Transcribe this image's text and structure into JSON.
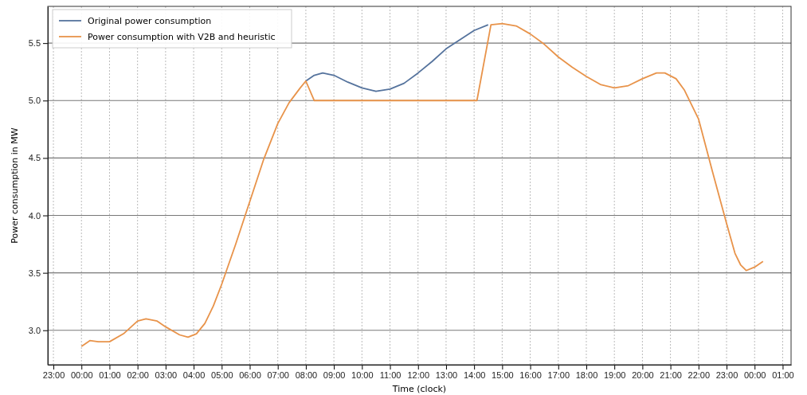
{
  "chart_data": {
    "type": "line",
    "xlabel": "Time (clock)",
    "ylabel": "Power consumption in MW",
    "xlim": [
      "2000-01-01T22:48",
      "2000-01-03T01:18"
    ],
    "ylim": [
      2.7,
      5.82
    ],
    "xticks": [
      {
        "value": "2000-01-01T23:00",
        "label": "23:00"
      },
      {
        "value": "2000-01-02T00:00",
        "label": "00:00"
      },
      {
        "value": "2000-01-02T01:00",
        "label": "01:00"
      },
      {
        "value": "2000-01-02T02:00",
        "label": "02:00"
      },
      {
        "value": "2000-01-02T03:00",
        "label": "03:00"
      },
      {
        "value": "2000-01-02T04:00",
        "label": "04:00"
      },
      {
        "value": "2000-01-02T05:00",
        "label": "05:00"
      },
      {
        "value": "2000-01-02T06:00",
        "label": "06:00"
      },
      {
        "value": "2000-01-02T07:00",
        "label": "07:00"
      },
      {
        "value": "2000-01-02T08:00",
        "label": "08:00"
      },
      {
        "value": "2000-01-02T09:00",
        "label": "09:00"
      },
      {
        "value": "2000-01-02T10:00",
        "label": "10:00"
      },
      {
        "value": "2000-01-02T11:00",
        "label": "11:00"
      },
      {
        "value": "2000-01-02T12:00",
        "label": "12:00"
      },
      {
        "value": "2000-01-02T13:00",
        "label": "13:00"
      },
      {
        "value": "2000-01-02T14:00",
        "label": "14:00"
      },
      {
        "value": "2000-01-02T15:00",
        "label": "15:00"
      },
      {
        "value": "2000-01-02T16:00",
        "label": "16:00"
      },
      {
        "value": "2000-01-02T17:00",
        "label": "17:00"
      },
      {
        "value": "2000-01-02T18:00",
        "label": "18:00"
      },
      {
        "value": "2000-01-02T19:00",
        "label": "19:00"
      },
      {
        "value": "2000-01-02T20:00",
        "label": "20:00"
      },
      {
        "value": "2000-01-02T21:00",
        "label": "21:00"
      },
      {
        "value": "2000-01-02T22:00",
        "label": "22:00"
      },
      {
        "value": "2000-01-02T23:00",
        "label": "23:00"
      },
      {
        "value": "2000-01-03T00:00",
        "label": "00:00"
      },
      {
        "value": "2000-01-03T01:00",
        "label": "01:00"
      }
    ],
    "yticks": [
      {
        "value": 3,
        "label": "3.0"
      },
      3.5,
      {
        "value": 4,
        "label": "4.0"
      },
      4.5,
      {
        "value": 5,
        "label": "5.0"
      },
      5.5
    ],
    "grid": true,
    "legend": "top left",
    "series": [
      {
        "name": "Original power consumption",
        "color": "#55739d",
        "x": [
          "2000-01-02T08:00",
          "2000-01-02T08:18",
          "2000-01-02T08:36",
          "2000-01-02T09:00",
          "2000-01-02T09:30",
          "2000-01-02T10:00",
          "2000-01-02T10:30",
          "2000-01-02T11:00",
          "2000-01-02T11:30",
          "2000-01-02T12:00",
          "2000-01-02T12:30",
          "2000-01-02T13:00",
          "2000-01-02T13:30",
          "2000-01-02T14:00",
          "2000-01-02T14:30"
        ],
        "values": [
          5.17,
          5.22,
          5.24,
          5.22,
          5.16,
          5.11,
          5.08,
          5.1,
          5.15,
          5.24,
          5.34,
          5.45,
          5.53,
          5.61,
          5.66
        ]
      },
      {
        "name": "Power consumption with V2B and heuristic",
        "color": "#e8934a",
        "x": [
          "2000-01-02T00:00",
          "2000-01-02T00:18",
          "2000-01-02T00:36",
          "2000-01-02T01:00",
          "2000-01-02T01:30",
          "2000-01-02T02:00",
          "2000-01-02T02:18",
          "2000-01-02T02:42",
          "2000-01-02T03:00",
          "2000-01-02T03:30",
          "2000-01-02T03:48",
          "2000-01-02T04:06",
          "2000-01-02T04:24",
          "2000-01-02T04:42",
          "2000-01-02T05:00",
          "2000-01-02T05:30",
          "2000-01-02T06:00",
          "2000-01-02T06:30",
          "2000-01-02T07:00",
          "2000-01-02T07:24",
          "2000-01-02T07:48",
          "2000-01-02T08:00",
          "2000-01-02T08:18",
          "2000-01-02T14:06",
          "2000-01-02T14:36",
          "2000-01-02T15:00",
          "2000-01-02T15:30",
          "2000-01-02T16:00",
          "2000-01-02T16:30",
          "2000-01-02T17:00",
          "2000-01-02T17:30",
          "2000-01-02T18:00",
          "2000-01-02T18:30",
          "2000-01-02T19:00",
          "2000-01-02T19:30",
          "2000-01-02T20:00",
          "2000-01-02T20:30",
          "2000-01-02T20:48",
          "2000-01-02T21:12",
          "2000-01-02T21:30",
          "2000-01-02T22:00",
          "2000-01-02T22:30",
          "2000-01-02T23:00",
          "2000-01-02T23:18",
          "2000-01-02T23:30",
          "2000-01-02T23:42",
          "2000-01-03T00:00",
          "2000-01-03T00:18"
        ],
        "values": [
          2.86,
          2.91,
          2.9,
          2.9,
          2.97,
          3.08,
          3.1,
          3.08,
          3.03,
          2.96,
          2.94,
          2.97,
          3.06,
          3.21,
          3.4,
          3.75,
          4.12,
          4.49,
          4.8,
          4.98,
          5.11,
          5.17,
          5.0,
          5.0,
          5.66,
          5.67,
          5.65,
          5.58,
          5.49,
          5.38,
          5.29,
          5.21,
          5.14,
          5.11,
          5.13,
          5.19,
          5.24,
          5.24,
          5.19,
          5.09,
          4.84,
          4.38,
          3.93,
          3.67,
          3.57,
          3.52,
          3.55,
          3.6
        ]
      }
    ]
  }
}
